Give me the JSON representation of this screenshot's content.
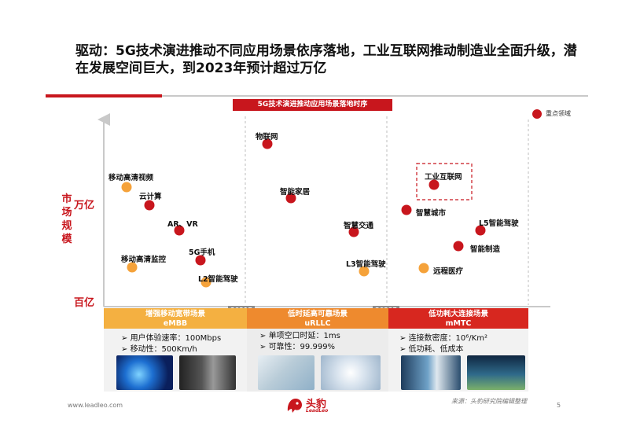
{
  "title": "驱动：5G技术演进推动不同应用场景依序落地，工业互联网推动制造业全面升级，潜在发展空间巨大，到2023年预计超过万亿",
  "banner": "5G技术演进推动应用场景落地时序",
  "legend": {
    "label": "重点领域",
    "color": "#c8161d"
  },
  "axis": {
    "y_label": "市场规模",
    "y_top": "万亿",
    "y_bottom": "百亿"
  },
  "years": [
    "2021E",
    "2023E"
  ],
  "colors": {
    "key": "#c8161d",
    "other": "#f5a23a",
    "embb": "#f4b041",
    "urllc": "#ee8a2e",
    "mmtc": "#d7271f"
  },
  "points": [
    {
      "label": "移动高清视频",
      "kind": "other"
    },
    {
      "label": "云计算",
      "kind": "key"
    },
    {
      "label": "AR、VR",
      "kind": "key"
    },
    {
      "label": "5G手机",
      "kind": "key"
    },
    {
      "label": "移动高清监控",
      "kind": "other"
    },
    {
      "label": "L2智能驾驶",
      "kind": "other"
    },
    {
      "label": "物联网",
      "kind": "key"
    },
    {
      "label": "智能家居",
      "kind": "key"
    },
    {
      "label": "智慧交通",
      "kind": "key"
    },
    {
      "label": "L3智能驾驶",
      "kind": "other"
    },
    {
      "label": "工业互联网",
      "kind": "key"
    },
    {
      "label": "智慧城市",
      "kind": "key"
    },
    {
      "label": "L5智能驾驶",
      "kind": "key"
    },
    {
      "label": "智能制造",
      "kind": "key"
    },
    {
      "label": "远程医疗",
      "kind": "other"
    }
  ],
  "scenarios": [
    {
      "name": "增强移动宽带场景",
      "code": "eMBB",
      "bullets": [
        "用户体验速率：100Mbps",
        "移动性：500Km/h"
      ]
    },
    {
      "name": "低时延高可靠场景",
      "code": "uRLLC",
      "bullets": [
        "单项空口时延：1ms",
        "可靠性：99.999%"
      ]
    },
    {
      "name": "低功耗大连接场景",
      "code": "mMTC",
      "bullets": [
        "连接数密度：10⁶/Km²",
        "低功耗、低成本"
      ]
    }
  ],
  "footer": {
    "url": "www.leadleo.com",
    "source": "来源：头豹研究院编辑整理",
    "page": "5",
    "logo_text": "头豹",
    "logo_sub": "LeadLeo"
  }
}
